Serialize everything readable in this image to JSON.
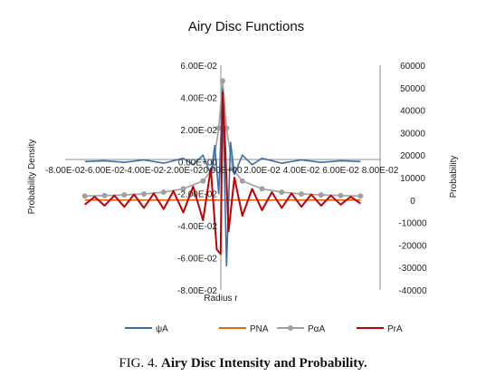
{
  "chart_data": {
    "type": "line",
    "title": "Airy Disc Functions",
    "xlabel": "Radius r",
    "ylabel_left": "Probability Density",
    "ylabel_right": "Probability",
    "x_tick_labels": [
      "-8.00E-02",
      "-6.00E-02",
      "-4.00E-02",
      "-2.00E-02",
      "0.00E+00",
      "2.00E-02",
      "4.00E-02",
      "6.00E-02",
      "8.00E-02"
    ],
    "x_ticks": [
      -0.08,
      -0.06,
      -0.04,
      -0.02,
      0.0,
      0.02,
      0.04,
      0.06,
      0.08
    ],
    "xlim": [
      -0.08,
      0.08
    ],
    "y_left_tick_labels": [
      "6.00E-02",
      "4.00E-02",
      "2.00E-02",
      "0.00E+00",
      "-2.00E-02",
      "-4.00E-02",
      "-6.00E-02",
      "-8.00E-02"
    ],
    "y_left_ticks": [
      0.06,
      0.04,
      0.02,
      0.0,
      -0.02,
      -0.04,
      -0.06,
      -0.08
    ],
    "ylim_left": [
      -0.08,
      0.06
    ],
    "y_right_tick_labels": [
      "60000",
      "50000",
      "40000",
      "30000",
      "20000",
      "10000",
      "0",
      "-10000",
      "-20000",
      "-30000",
      "-40000"
    ],
    "y_right_ticks": [
      60000,
      50000,
      40000,
      30000,
      20000,
      10000,
      0,
      -10000,
      -20000,
      -30000,
      -40000
    ],
    "ylim_right": [
      -40000,
      60000
    ],
    "legend_position": "bottom",
    "grid": false,
    "series": [
      {
        "name": "ψA",
        "axis": "left",
        "color": "#3a6fa8",
        "marker": "none",
        "x": [
          -0.07,
          -0.06,
          -0.05,
          -0.04,
          -0.03,
          -0.02,
          -0.015,
          -0.01,
          -0.006,
          -0.004,
          -0.002,
          0.0,
          0.002,
          0.004,
          0.006,
          0.01,
          0.015,
          0.02,
          0.03,
          0.04,
          0.05,
          0.06,
          0.07
        ],
        "y": [
          0.0,
          0.0005,
          -0.0005,
          0.001,
          -0.001,
          0.002,
          -0.002,
          0.004,
          -0.008,
          0.01,
          -0.02,
          0.045,
          -0.065,
          0.012,
          -0.008,
          0.004,
          -0.002,
          0.002,
          -0.001,
          0.001,
          -0.0005,
          0.0005,
          0.0
        ]
      },
      {
        "name": "PNA",
        "axis": "right",
        "color": "#e36c0a",
        "marker": "none",
        "x": [
          -0.07,
          0.07
        ],
        "y": [
          0,
          0
        ]
      },
      {
        "name": "PαA",
        "axis": "right",
        "color": "#a0a0a0",
        "marker": "circle",
        "x": [
          -0.07,
          -0.06,
          -0.05,
          -0.04,
          -0.03,
          -0.02,
          -0.01,
          -0.005,
          -0.002,
          0.0,
          0.002,
          0.005,
          0.01,
          0.02,
          0.03,
          0.04,
          0.05,
          0.06,
          0.07
        ],
        "y": [
          1800,
          2000,
          2300,
          2700,
          3500,
          5000,
          8500,
          14000,
          32000,
          53000,
          32000,
          14000,
          8500,
          5000,
          3500,
          2700,
          2300,
          2000,
          1800
        ]
      },
      {
        "name": "PrA",
        "axis": "right",
        "color": "#c00000",
        "marker": "none",
        "x": [
          -0.07,
          -0.065,
          -0.06,
          -0.055,
          -0.05,
          -0.045,
          -0.04,
          -0.035,
          -0.03,
          -0.025,
          -0.02,
          -0.015,
          -0.01,
          -0.006,
          -0.003,
          -0.001,
          0.0,
          0.001,
          0.003,
          0.006,
          0.01,
          0.015,
          0.02,
          0.025,
          0.03,
          0.035,
          0.04,
          0.045,
          0.05,
          0.055,
          0.06,
          0.065,
          0.07
        ],
        "y": [
          -2000,
          1500,
          -2500,
          2000,
          -3000,
          2500,
          -3500,
          3000,
          -4000,
          4000,
          -5500,
          6000,
          -9000,
          14000,
          -22000,
          -24000,
          48000,
          30000,
          -14000,
          10000,
          -7000,
          5000,
          -4500,
          3500,
          -3500,
          3000,
          -3000,
          2500,
          -2500,
          2000,
          -2000,
          1500,
          -1500
        ]
      }
    ]
  },
  "caption": {
    "prefix": "FIG. 4.",
    "bold": "Airy Disc Intensity and Probability."
  }
}
